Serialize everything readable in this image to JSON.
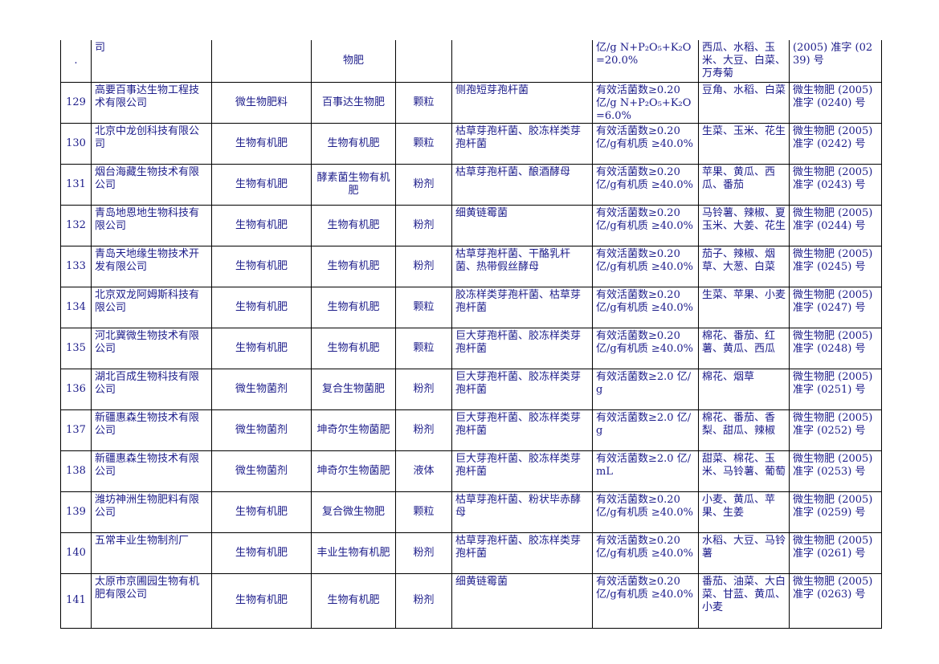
{
  "rows": [
    {
      "no": ".",
      "company": "司",
      "type": "",
      "product": "物肥",
      "form": "",
      "strain": "",
      "spec": "亿/g N+P₂O₅+K₂O =20.0%",
      "crops": "西瓜、水稻、玉米、大豆、白菜、万寿菊",
      "reg": "(2005) 准字 (0239) 号"
    },
    {
      "no": "129",
      "company": "高要百事达生物工程技术有限公司",
      "type": "微生物肥料",
      "product": "百事达生物肥",
      "form": "颗粒",
      "strain": "侧孢短芽孢杆菌",
      "spec": "有效活菌数≥0.20 亿/g N+P₂O₅+K₂O =6.0%",
      "crops": "豆角、水稻、白菜",
      "reg": "微生物肥 (2005) 准字 (0240) 号"
    },
    {
      "no": "130",
      "company": "北京中龙创科技有限公司",
      "type": "生物有机肥",
      "product": "生物有机肥",
      "form": "颗粒",
      "strain": "枯草芽孢杆菌、胶冻样类芽孢杆菌",
      "spec": "有效活菌数≥0.20 亿/g有机质 ≥40.0%",
      "crops": "生菜、玉米、花生",
      "reg": "微生物肥 (2005) 准字 (0242) 号"
    },
    {
      "no": "131",
      "company": "烟台海藏生物技术有限公司",
      "type": "生物有机肥",
      "product": "酵素菌生物有机肥",
      "form": "粉剂",
      "strain": "枯草芽孢杆菌、酿酒酵母",
      "spec": "有效活菌数≥0.20 亿/g有机质 ≥40.0%",
      "crops": "苹果、黄瓜、西瓜、番茄",
      "reg": "微生物肥 (2005) 准字 (0243) 号"
    },
    {
      "no": "132",
      "company": "青岛地恩地生物科技有限公司",
      "type": "生物有机肥",
      "product": "生物有机肥",
      "form": "粉剂",
      "strain": "细黄链霉菌",
      "spec": "有效活菌数≥0.20 亿/g有机质 ≥40.0%",
      "crops": "马铃薯、辣椒、夏玉米、大姜、花生",
      "reg": "微生物肥 (2005) 准字 (0244) 号"
    },
    {
      "no": "133",
      "company": "青岛天地缘生物技术开发有限公司",
      "type": "生物有机肥",
      "product": "生物有机肥",
      "form": "粉剂",
      "strain": "枯草芽孢杆菌、干酪乳杆菌、热带假丝酵母",
      "spec": "有效活菌数≥0.20 亿/g有机质 ≥40.0%",
      "crops": "茄子、辣椒、烟草、大葱、白菜",
      "reg": "微生物肥 (2005) 准字 (0245) 号"
    },
    {
      "no": "134",
      "company": "北京双龙阿姆斯科技有限公司",
      "type": "生物有机肥",
      "product": "生物有机肥",
      "form": "颗粒",
      "strain": "胶冻样类芽孢杆菌、枯草芽孢杆菌",
      "spec": "有效活菌数≥0.20 亿/g有机质 ≥40.0%",
      "crops": "生菜、苹果、小麦",
      "reg": "微生物肥 (2005) 准字 (0247) 号"
    },
    {
      "no": "135",
      "company": "河北冀微生物技术有限公司",
      "type": "生物有机肥",
      "product": "生物有机肥",
      "form": "颗粒",
      "strain": "巨大芽孢杆菌、胶冻样类芽孢杆菌",
      "spec": "有效活菌数≥0.20 亿/g有机质 ≥40.0%",
      "crops": "棉花、番茄、红薯、黄瓜、西瓜",
      "reg": "微生物肥 (2005) 准字 (0248) 号"
    },
    {
      "no": "136",
      "company": "湖北百成生物科技有限公司",
      "type": "微生物菌剂",
      "product": "复合生物菌肥",
      "form": "粉剂",
      "strain": "巨大芽孢杆菌、胶冻样类芽孢杆菌",
      "spec": "有效活菌数≥2.0 亿/g",
      "crops": "棉花、烟草",
      "reg": "微生物肥 (2005) 准字 (0251) 号"
    },
    {
      "no": "137",
      "company": "新疆惠森生物技术有限公司",
      "type": "微生物菌剂",
      "product": "坤奇尔生物菌肥",
      "form": "粉剂",
      "strain": "巨大芽孢杆菌、胶冻样类芽孢杆菌",
      "spec": "有效活菌数≥2.0 亿/g",
      "crops": "棉花、番茄、香梨、甜瓜、辣椒",
      "reg": "微生物肥 (2005) 准字 (0252) 号"
    },
    {
      "no": "138",
      "company": "新疆惠森生物技术有限公司",
      "type": "微生物菌剂",
      "product": "坤奇尔生物菌肥",
      "form": "液体",
      "strain": "巨大芽孢杆菌、胶冻样类芽孢杆菌",
      "spec": "有效活菌数≥2.0 亿/mL",
      "crops": "甜菜、棉花、玉米、马铃薯、葡萄",
      "reg": "微生物肥 (2005) 准字 (0253) 号"
    },
    {
      "no": "139",
      "company": "潍坊神洲生物肥料有限公司",
      "type": "生物有机肥",
      "product": "复合微生物肥",
      "form": "颗粒",
      "strain": "枯草芽孢杆菌、粉状毕赤酵母",
      "spec": "有效活菌数≥0.20 亿/g有机质 ≥40.0%",
      "crops": "小麦、黄瓜、苹果、生姜",
      "reg": "微生物肥 (2005) 准字 (0259) 号"
    },
    {
      "no": "140",
      "company": "五常丰业生物制剂厂",
      "type": "生物有机肥",
      "product": "丰业生物有机肥",
      "form": "粉剂",
      "strain": "枯草芽孢杆菌、胶冻样类芽孢杆菌",
      "spec": "有效活菌数≥0.20 亿/g有机质 ≥40.0%",
      "crops": "水稻、大豆、马铃薯",
      "reg": "微生物肥 (2005) 准字 (0261) 号"
    },
    {
      "no": "141",
      "company": "太原市京圃园生物有机肥有限公司",
      "type": "生物有机肥",
      "product": "生物有机肥",
      "form": "粉剂",
      "strain": "细黄链霉菌",
      "spec": "有效活菌数≥0.20 亿/g有机质 ≥40.0%",
      "crops": "番茄、油菜、大白菜、甘蓝、黄瓜、小麦",
      "reg": "微生物肥 (2005) 准字 (0263) 号"
    }
  ]
}
